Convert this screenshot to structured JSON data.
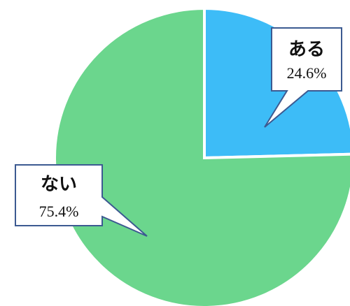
{
  "chart_data": {
    "type": "pie",
    "categories": [
      "ある",
      "ない"
    ],
    "values": [
      24.6,
      75.4
    ],
    "value_labels": [
      "24.6%",
      "75.4%"
    ],
    "colors": [
      "#3dbcf7",
      "#6bd68d"
    ],
    "start": "12 o'clock, clockwise",
    "legend": "none (callout labels)"
  },
  "labels": {
    "aru": {
      "name": "ある",
      "pct": "24.6%"
    },
    "nai": {
      "name": "ない",
      "pct": "75.4%"
    }
  }
}
